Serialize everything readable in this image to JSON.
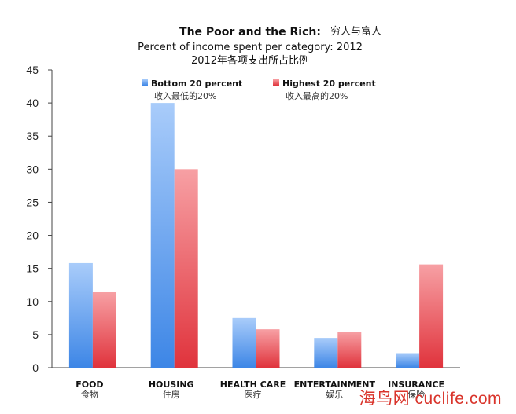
{
  "chart_data": {
    "type": "bar",
    "title": "The Poor and the Rich:",
    "title_cn": "穷人与富人",
    "subtitle": "Percent of income spent per category: 2012",
    "subtitle_cn": "2012年各项支出所占比例",
    "categories": [
      "FOOD",
      "HOUSING",
      "HEALTH CARE",
      "ENTERTAINMENT",
      "INSURANCE"
    ],
    "categories_cn": [
      "食物",
      "住房",
      "医疗",
      "娱乐",
      "保险"
    ],
    "series": [
      {
        "name": "Bottom 20 percent",
        "name_cn": "收入最低的20%",
        "values": [
          15.8,
          40,
          7.5,
          4.5,
          2.2
        ],
        "color": "#5b9cf0"
      },
      {
        "name": "Highest 20 percent",
        "name_cn": "收入最高的20%",
        "values": [
          11.4,
          30,
          5.8,
          5.4,
          15.6
        ],
        "color": "#e8474f"
      }
    ],
    "ylim": [
      0,
      45
    ],
    "yticks": [
      0,
      5,
      10,
      15,
      20,
      25,
      30,
      35,
      40,
      45
    ],
    "grid": false,
    "legend_position": "top"
  },
  "watermark": "海鸟网 cuclife.com"
}
